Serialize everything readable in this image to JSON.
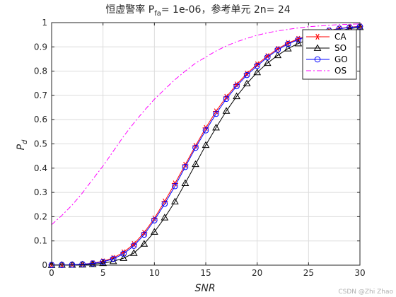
{
  "chart_data": {
    "type": "line",
    "title": {
      "main": "恒虚警率 P",
      "sub": "fa",
      "rest": "= 1e-06，参考单元 2n= 24"
    },
    "xlabel": "SNR",
    "ylabel": {
      "main": "P",
      "sub": "d"
    },
    "xlim": [
      0,
      30
    ],
    "ylim": [
      0,
      1
    ],
    "xticks": [
      0,
      5,
      10,
      15,
      20,
      25,
      30
    ],
    "yticks": [
      0,
      0.1,
      0.2,
      0.3,
      0.4,
      0.5,
      0.6,
      0.7,
      0.8,
      0.9,
      1
    ],
    "grid": true,
    "legend_position": "top-right",
    "x": [
      0,
      1,
      2,
      3,
      4,
      5,
      6,
      7,
      8,
      9,
      10,
      11,
      12,
      13,
      14,
      15,
      16,
      17,
      18,
      19,
      20,
      21,
      22,
      23,
      24,
      25,
      26,
      27,
      28,
      29,
      30
    ],
    "series": [
      {
        "name": "CA",
        "color": "#ff0000",
        "marker": "asterisk",
        "style": "solid",
        "values": [
          0.001,
          0.001,
          0.002,
          0.004,
          0.008,
          0.016,
          0.03,
          0.053,
          0.087,
          0.134,
          0.193,
          0.263,
          0.337,
          0.414,
          0.492,
          0.566,
          0.634,
          0.694,
          0.745,
          0.79,
          0.828,
          0.862,
          0.892,
          0.916,
          0.933,
          0.948,
          0.959,
          0.968,
          0.976,
          0.981,
          0.985
        ]
      },
      {
        "name": "SO",
        "color": "#000000",
        "marker": "triangle",
        "style": "solid",
        "values": [
          0.0005,
          0.001,
          0.001,
          0.002,
          0.004,
          0.008,
          0.016,
          0.029,
          0.05,
          0.088,
          0.137,
          0.196,
          0.262,
          0.338,
          0.416,
          0.495,
          0.567,
          0.636,
          0.696,
          0.749,
          0.795,
          0.833,
          0.865,
          0.893,
          0.914,
          0.931,
          0.945,
          0.957,
          0.967,
          0.975,
          0.981
        ]
      },
      {
        "name": "GO",
        "color": "#0000ff",
        "marker": "circle",
        "style": "solid",
        "values": [
          0.001,
          0.001,
          0.002,
          0.004,
          0.007,
          0.014,
          0.026,
          0.047,
          0.08,
          0.126,
          0.185,
          0.253,
          0.326,
          0.405,
          0.484,
          0.556,
          0.624,
          0.686,
          0.738,
          0.784,
          0.822,
          0.857,
          0.888,
          0.912,
          0.93,
          0.946,
          0.957,
          0.967,
          0.975,
          0.98,
          0.984
        ]
      },
      {
        "name": "OS",
        "color": "#ff00ff",
        "marker": "none",
        "style": "dashdot",
        "values": [
          0.167,
          0.205,
          0.248,
          0.298,
          0.354,
          0.409,
          0.47,
          0.531,
          0.586,
          0.637,
          0.684,
          0.725,
          0.765,
          0.8,
          0.833,
          0.858,
          0.883,
          0.904,
          0.921,
          0.935,
          0.948,
          0.958,
          0.966,
          0.972,
          0.978,
          0.983,
          0.986,
          0.989,
          0.992,
          0.993,
          0.995
        ]
      }
    ]
  },
  "watermark": "CSDN @Zhi Zhao"
}
